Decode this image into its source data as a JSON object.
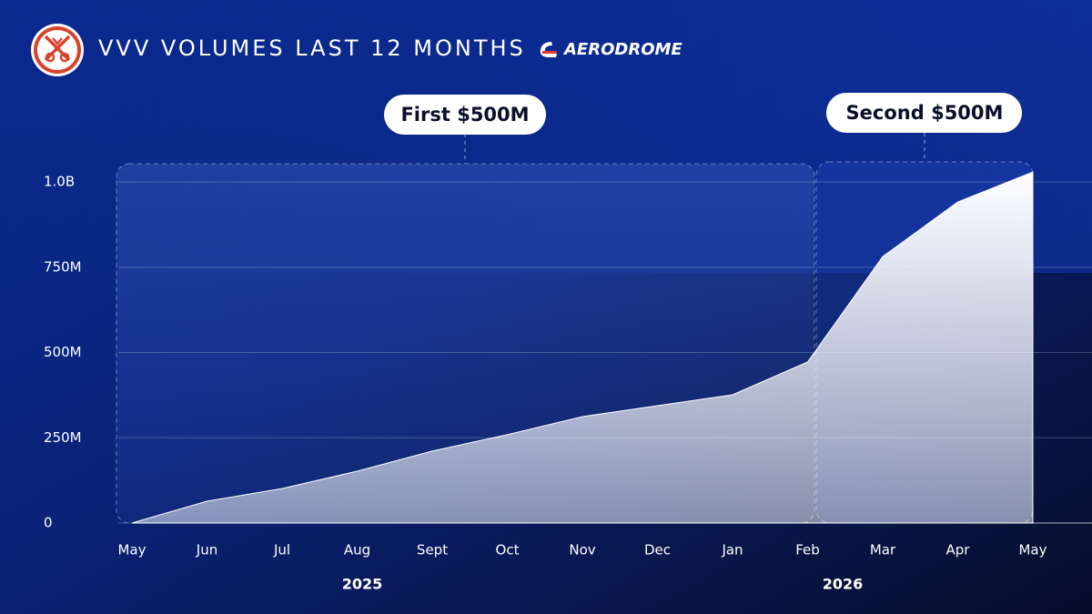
{
  "chart_data": {
    "type": "area",
    "title": "VVV VOLUMES LAST 12 MONTHS",
    "brand": "AERODROME",
    "annotations": [
      "First $500M",
      "Second $500M"
    ],
    "categories": [
      "May",
      "Jun",
      "Jul",
      "Aug",
      "Sept",
      "Oct",
      "Nov",
      "Dec",
      "Jan",
      "Feb",
      "Mar",
      "Apr",
      "May"
    ],
    "x_group_labels": [
      "2025",
      "2026"
    ],
    "values": [
      0,
      64000000,
      101000000,
      152000000,
      211000000,
      259000000,
      312000000,
      344000000,
      376000000,
      472000000,
      781000000,
      941000000,
      1029000000
    ],
    "color": "#ffffff",
    "ylim": [
      0,
      1060000000
    ],
    "yticks": [
      0,
      {
        "value": 250000000,
        "label": "250M"
      },
      {
        "value": 500000000,
        "label": "500M"
      },
      {
        "value": 750000000,
        "label": "750M"
      },
      {
        "value": 1000000000,
        "label": "1.0B"
      }
    ],
    "grid": true
  }
}
